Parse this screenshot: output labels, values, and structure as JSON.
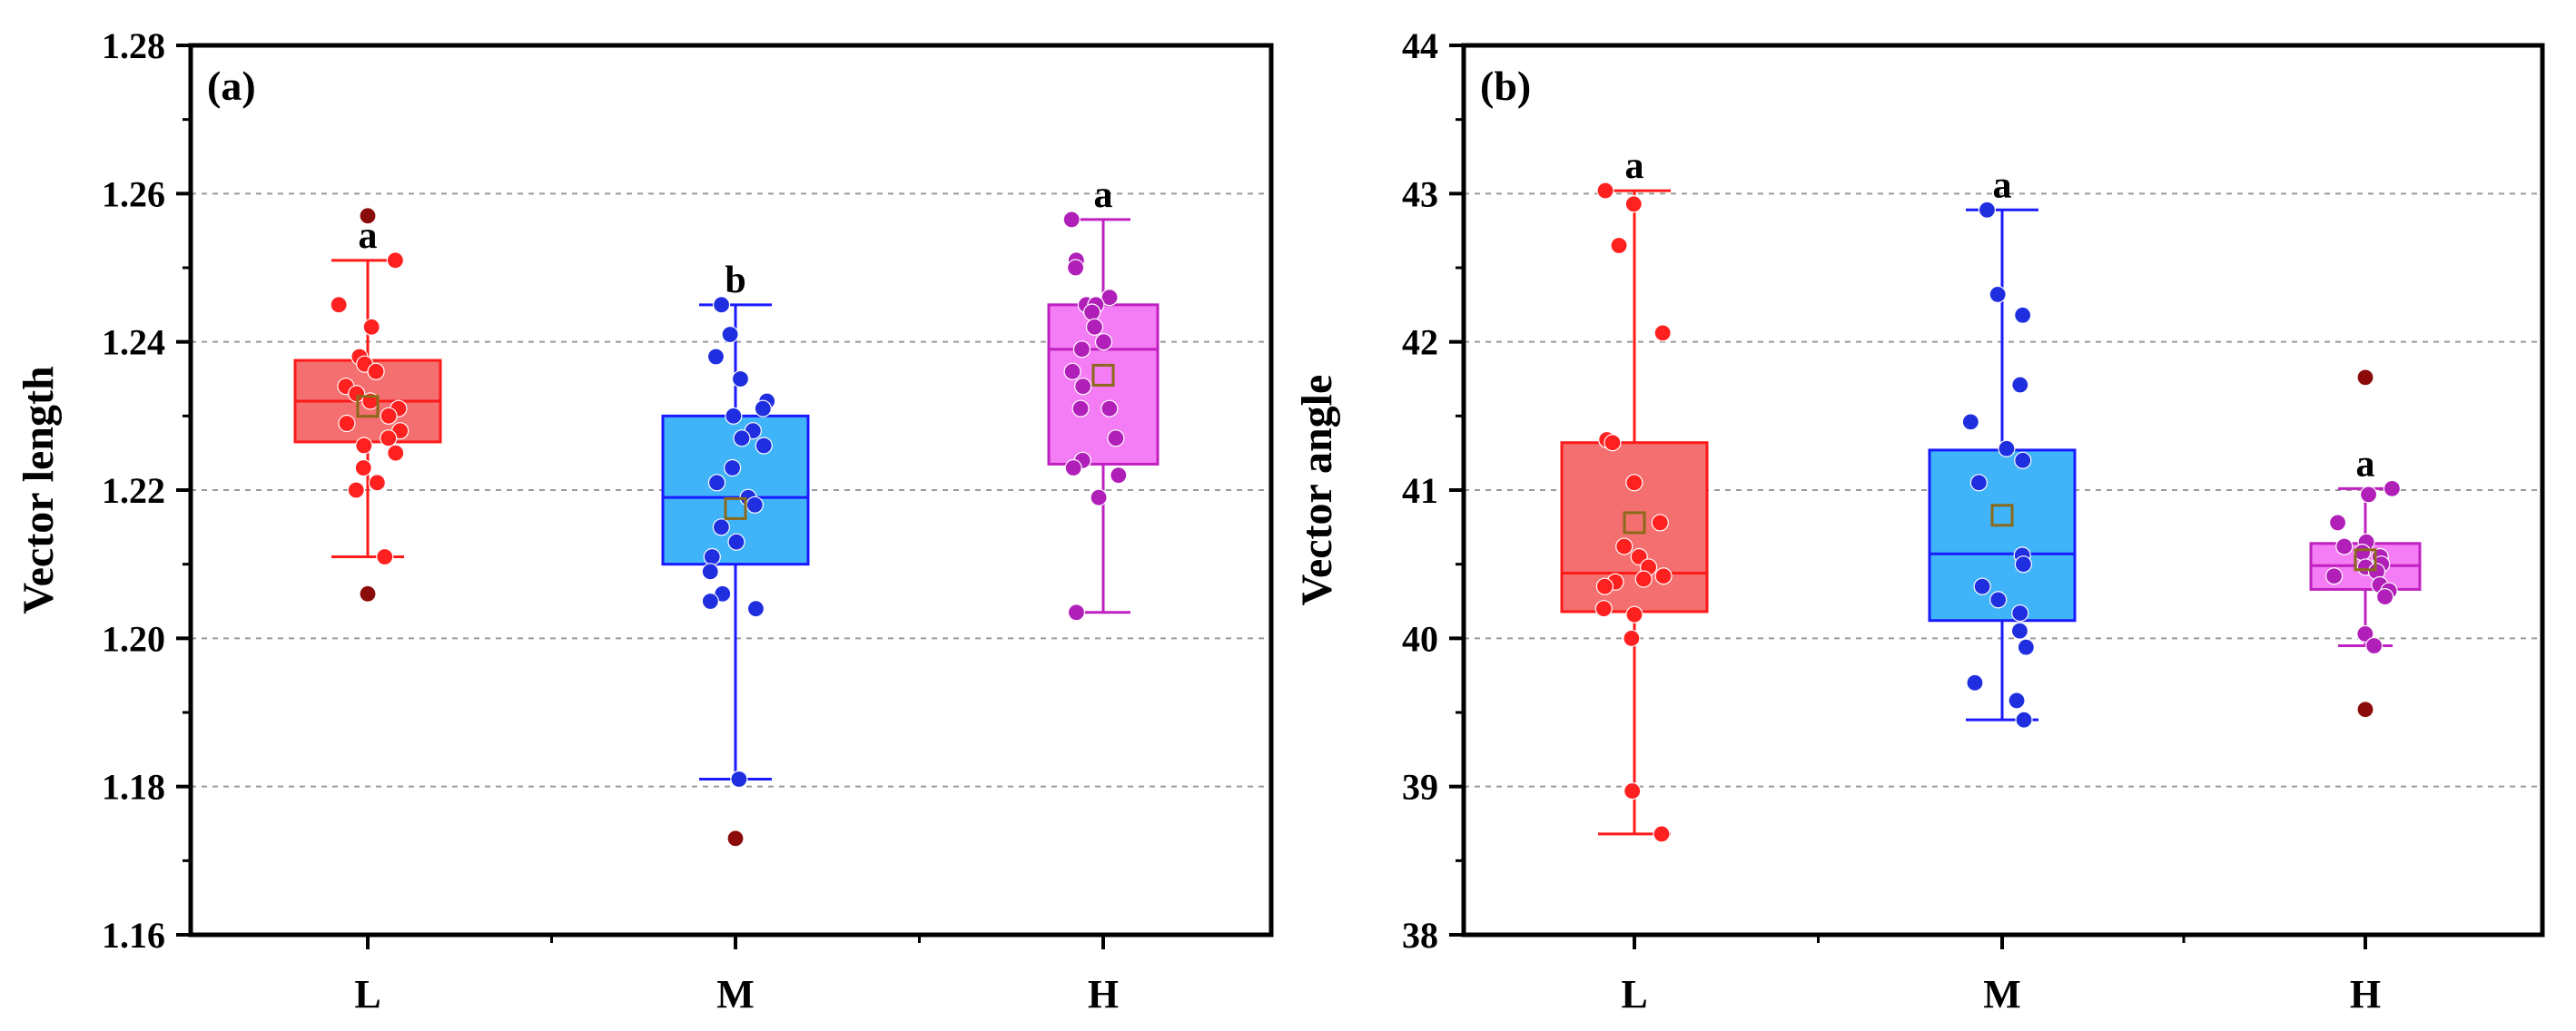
{
  "chart_data": [
    {
      "type": "box",
      "panel_label": "(a)",
      "ylabel": "Vector length",
      "ylim": [
        1.16,
        1.28
      ],
      "yticks": [
        "1.16",
        "1.18",
        "1.20",
        "1.22",
        "1.24",
        "1.26",
        "1.28"
      ],
      "ytick_values": [
        1.16,
        1.18,
        1.2,
        1.22,
        1.24,
        1.26,
        1.28
      ],
      "gridlines": [
        1.18,
        1.2,
        1.22,
        1.24,
        1.26
      ],
      "categories": [
        "L",
        "M",
        "H"
      ],
      "colors": {
        "L": {
          "fill": "#f46f6f",
          "edge": "#ff1a1a",
          "point": "#ff2020"
        },
        "M": {
          "fill": "#40b4f8",
          "edge": "#1a1aff",
          "point": "#1f2fe0"
        },
        "H": {
          "fill": "#f47cf4",
          "edge": "#c020c0",
          "point": "#b020b8"
        },
        "outlier": "#8b0a0a",
        "mean": "#8a6a1a"
      },
      "groups": [
        {
          "name": "L",
          "q1": 1.2265,
          "median": 1.232,
          "q3": 1.2375,
          "whisker_low": 1.211,
          "whisker_high": 1.251,
          "mean": 1.2313,
          "letter": "a",
          "points": [
            1.251,
            1.245,
            1.242,
            1.238,
            1.237,
            1.236,
            1.234,
            1.233,
            1.232,
            1.231,
            1.23,
            1.229,
            1.228,
            1.227,
            1.226,
            1.225,
            1.223,
            1.221,
            1.22,
            1.211
          ],
          "outliers": [
            1.257,
            1.206
          ]
        },
        {
          "name": "M",
          "q1": 1.21,
          "median": 1.219,
          "q3": 1.23,
          "whisker_low": 1.181,
          "whisker_high": 1.245,
          "mean": 1.2175,
          "letter": "b",
          "points": [
            1.245,
            1.241,
            1.238,
            1.235,
            1.232,
            1.231,
            1.23,
            1.228,
            1.227,
            1.226,
            1.223,
            1.221,
            1.219,
            1.218,
            1.215,
            1.213,
            1.211,
            1.209,
            1.206,
            1.205,
            1.204,
            1.181
          ],
          "outliers": [
            1.173
          ]
        },
        {
          "name": "H",
          "q1": 1.2235,
          "median": 1.239,
          "q3": 1.245,
          "whisker_low": 1.2035,
          "whisker_high": 1.2565,
          "mean": 1.2355,
          "letter": "a",
          "points": [
            1.2565,
            1.251,
            1.25,
            1.246,
            1.245,
            1.245,
            1.244,
            1.242,
            1.24,
            1.239,
            1.236,
            1.234,
            1.231,
            1.231,
            1.227,
            1.224,
            1.223,
            1.222,
            1.219,
            1.2035
          ],
          "outliers": []
        }
      ]
    },
    {
      "type": "box",
      "panel_label": "(b)",
      "ylabel": "Vector angle",
      "ylim": [
        38,
        44
      ],
      "yticks": [
        "38",
        "39",
        "40",
        "41",
        "42",
        "43",
        "44"
      ],
      "ytick_values": [
        38,
        39,
        40,
        41,
        42,
        43,
        44
      ],
      "gridlines": [
        39,
        40,
        41,
        42,
        43
      ],
      "categories": [
        "L",
        "M",
        "H"
      ],
      "colors": {
        "L": {
          "fill": "#f46f6f",
          "edge": "#ff1a1a",
          "point": "#ff2020"
        },
        "M": {
          "fill": "#40b4f8",
          "edge": "#1a1aff",
          "point": "#1f2fe0"
        },
        "H": {
          "fill": "#f47cf4",
          "edge": "#c020c0",
          "point": "#b020b8"
        },
        "outlier": "#8b0a0a",
        "mean": "#8a6a1a"
      },
      "groups": [
        {
          "name": "L",
          "q1": 40.18,
          "median": 40.44,
          "q3": 41.32,
          "whisker_low": 38.68,
          "whisker_high": 43.02,
          "mean": 40.78,
          "letter": "a",
          "points": [
            43.02,
            42.93,
            42.65,
            42.06,
            41.34,
            41.32,
            41.05,
            40.78,
            40.62,
            40.55,
            40.48,
            40.42,
            40.38,
            40.4,
            40.35,
            40.2,
            40.16,
            40.0,
            38.97,
            38.68
          ],
          "outliers": []
        },
        {
          "name": "M",
          "q1": 40.12,
          "median": 40.57,
          "q3": 41.27,
          "whisker_low": 39.45,
          "whisker_high": 42.89,
          "mean": 40.83,
          "letter": "a",
          "points": [
            42.89,
            42.32,
            42.18,
            41.71,
            41.46,
            41.28,
            41.2,
            41.05,
            40.56,
            40.5,
            40.35,
            40.26,
            40.17,
            40.05,
            39.94,
            39.7,
            39.58,
            39.45
          ],
          "outliers": []
        },
        {
          "name": "H",
          "q1": 40.33,
          "median": 40.49,
          "q3": 40.64,
          "whisker_low": 39.95,
          "whisker_high": 41.01,
          "mean": 40.53,
          "letter": "a",
          "points": [
            41.01,
            40.97,
            40.78,
            40.65,
            40.62,
            40.58,
            40.55,
            40.5,
            40.48,
            40.45,
            40.42,
            40.36,
            40.32,
            40.28,
            40.03,
            39.95
          ],
          "outliers": [
            41.76,
            39.52
          ]
        }
      ]
    }
  ]
}
